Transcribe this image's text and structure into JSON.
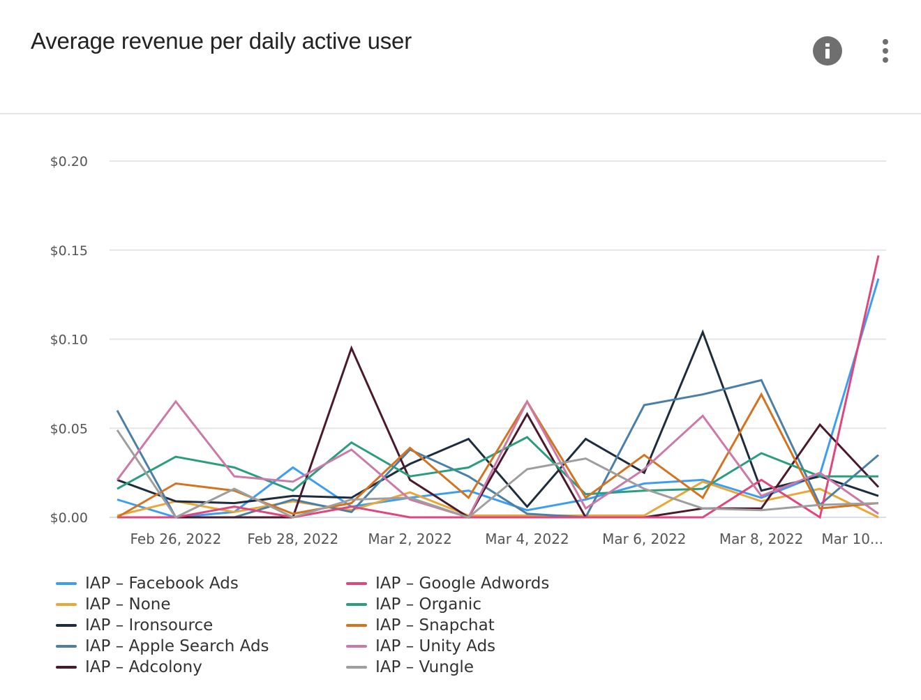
{
  "header": {
    "title": "Average revenue per daily active user",
    "info_icon": "info-icon",
    "menu_icon": "more-vertical-icon"
  },
  "chart_data": {
    "type": "line",
    "title": "Average revenue per daily active user",
    "xlabel": "",
    "ylabel": "",
    "ylim": [
      0,
      0.2
    ],
    "yticks": [
      0,
      0.05,
      0.1,
      0.15,
      0.2
    ],
    "ytick_labels": [
      "$0.00",
      "$0.05",
      "$0.10",
      "$0.15",
      "$0.20"
    ],
    "grid": true,
    "legend_position": "bottom",
    "x": [
      "Feb 25, 2022",
      "Feb 26, 2022",
      "Feb 27, 2022",
      "Feb 28, 2022",
      "Mar 1, 2022",
      "Mar 2, 2022",
      "Mar 3, 2022",
      "Mar 4, 2022",
      "Mar 5, 2022",
      "Mar 6, 2022",
      "Mar 7, 2022",
      "Mar 8, 2022",
      "Mar 9, 2022",
      "Mar 10, 2022"
    ],
    "xtick_labels": [
      {
        "index": 1,
        "label": "Feb 26, 2022"
      },
      {
        "index": 3,
        "label": "Feb 28, 2022"
      },
      {
        "index": 5,
        "label": "Mar 2, 2022"
      },
      {
        "index": 7,
        "label": "Mar 4, 2022"
      },
      {
        "index": 9,
        "label": "Mar 6, 2022"
      },
      {
        "index": 11,
        "label": "Mar 8, 2022"
      },
      {
        "index": 13,
        "label": "Mar 10..."
      }
    ],
    "series": [
      {
        "name": "IAP – Facebook Ads",
        "color": "#3d9df3",
        "values": [
          0.01,
          0.0,
          0.003,
          0.028,
          0.006,
          0.011,
          0.015,
          0.004,
          0.01,
          0.019,
          0.021,
          0.011,
          0.024,
          0.134
        ]
      },
      {
        "name": "IAP – None",
        "color": "#e8a838",
        "values": [
          0.001,
          0.009,
          0.003,
          0.009,
          0.004,
          0.014,
          0.001,
          0.001,
          0.001,
          0.001,
          0.02,
          0.009,
          0.016,
          0.0
        ]
      },
      {
        "name": "IAP – Ironsource",
        "color": "#1e2d3d",
        "values": [
          0.021,
          0.009,
          0.008,
          0.012,
          0.011,
          0.03,
          0.044,
          0.006,
          0.044,
          0.025,
          0.104,
          0.015,
          0.023,
          0.012
        ]
      },
      {
        "name": "IAP – Apple Search Ads",
        "color": "#4a7fa8",
        "values": [
          0.06,
          0.0,
          0.0,
          0.01,
          0.003,
          0.038,
          0.023,
          0.002,
          0.0,
          0.063,
          0.069,
          0.077,
          0.007,
          0.035
        ]
      },
      {
        "name": "IAP – Adcolony",
        "color": "#4a1a2c",
        "values": [
          0.0,
          0.0,
          0.0,
          0.0,
          0.095,
          0.021,
          0.0,
          0.058,
          0.0,
          0.0,
          0.005,
          0.005,
          0.052,
          0.017
        ]
      },
      {
        "name": "IAP – Google Adwords",
        "color": "#e0457b",
        "values": [
          0.0,
          0.0,
          0.006,
          0.0,
          0.006,
          0.0,
          0.0,
          0.0,
          0.0,
          0.0,
          0.0,
          0.021,
          0.0,
          0.147
        ]
      },
      {
        "name": "IAP – Organic",
        "color": "#2a9d7f",
        "values": [
          0.016,
          0.034,
          0.028,
          0.015,
          0.042,
          0.023,
          0.028,
          0.045,
          0.013,
          0.015,
          0.016,
          0.036,
          0.023,
          0.023
        ]
      },
      {
        "name": "IAP – Snapchat",
        "color": "#d4731f",
        "values": [
          0.0,
          0.019,
          0.015,
          0.002,
          0.008,
          0.039,
          0.011,
          0.065,
          0.011,
          0.035,
          0.011,
          0.069,
          0.005,
          0.008
        ]
      },
      {
        "name": "IAP – Unity Ads",
        "color": "#cc79a7",
        "values": [
          0.021,
          0.065,
          0.023,
          0.02,
          0.038,
          0.01,
          0.0,
          0.065,
          0.005,
          0.027,
          0.057,
          0.012,
          0.025,
          0.002
        ]
      },
      {
        "name": "IAP – Vungle",
        "color": "#9e9e9e",
        "values": [
          0.049,
          0.0,
          0.016,
          0.0,
          0.01,
          0.011,
          0.0,
          0.027,
          0.033,
          0.016,
          0.005,
          0.004,
          0.007,
          0.008
        ]
      }
    ]
  }
}
